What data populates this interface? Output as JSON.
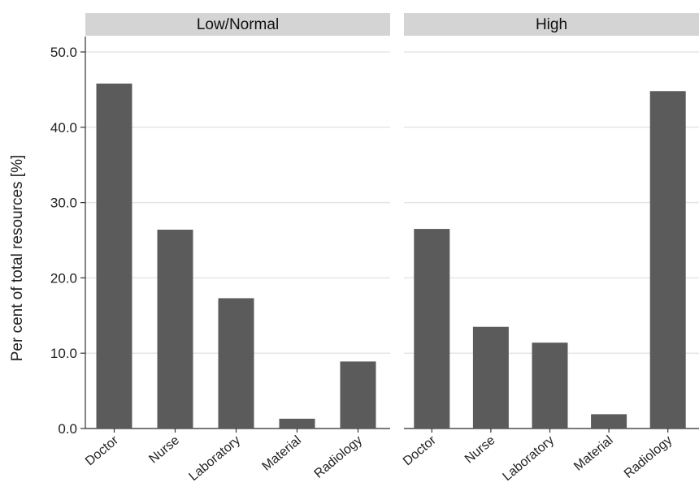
{
  "chart_data": {
    "type": "bar",
    "ylabel": "Per cent of total resources [%]",
    "ylim": [
      0,
      50
    ],
    "yticks": [
      "0.0",
      "10.0",
      "20.0",
      "30.0",
      "40.0",
      "50.0"
    ],
    "grid": true,
    "categories": [
      "Doctor",
      "Nurse",
      "Laboratory",
      "Material",
      "Radiology"
    ],
    "bar_color": "#5b5b5b",
    "strip_color": "#d4d4d4",
    "grid_color": "#e6e6e6",
    "panels": [
      {
        "label": "Low/Normal",
        "values": [
          45.8,
          26.4,
          17.3,
          1.3,
          8.9
        ]
      },
      {
        "label": "High",
        "values": [
          26.5,
          13.5,
          11.4,
          1.9,
          44.8
        ]
      }
    ]
  }
}
